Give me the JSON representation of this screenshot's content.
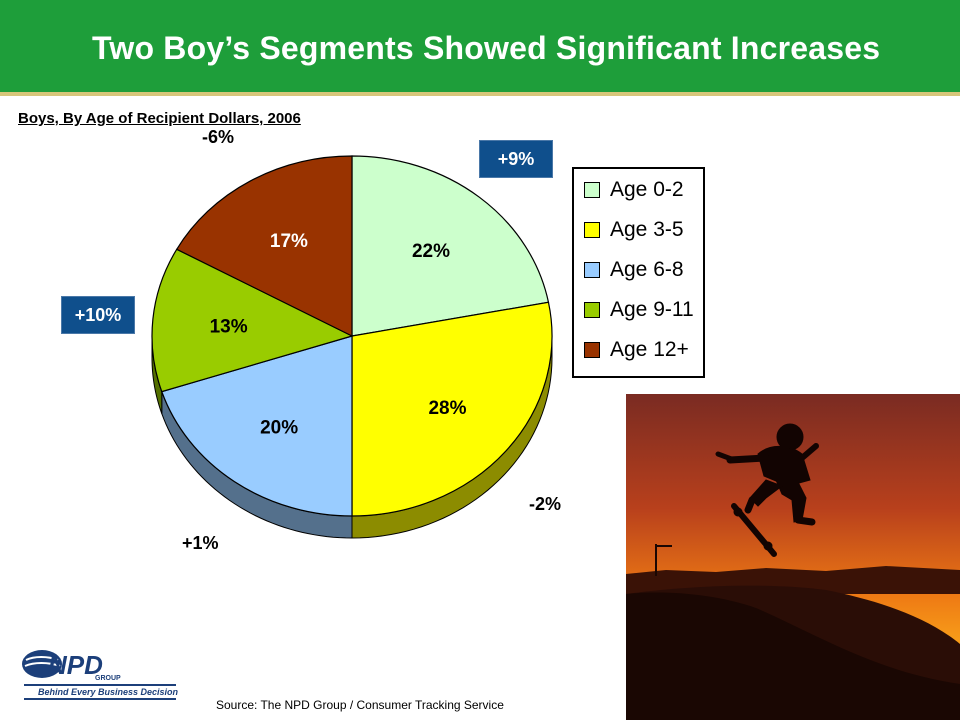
{
  "slide": {
    "title": "Two Boy’s Segments Showed Significant Increases",
    "subtitle": "Boys, By Age of Recipient Dollars, 2006",
    "source": "Source:  The NPD Group / Consumer Tracking Service",
    "logo_text": "NPD",
    "logo_group": "GROUP",
    "logo_tagline": "Behind Every Business Decision"
  },
  "colors": {
    "header": "#1e9e3a",
    "callout": "#0f4f8c"
  },
  "chart_data": {
    "type": "pie",
    "title": "Boys, By Age of Recipient Dollars, 2006",
    "legend_position": "right",
    "three_d": true,
    "categories": [
      "Age 0-2",
      "Age 3-5",
      "Age 6-8",
      "Age 9-11",
      "Age 12+"
    ],
    "values": [
      22,
      28,
      20,
      13,
      17
    ],
    "value_labels": [
      "22%",
      "28%",
      "20%",
      "13%",
      "17%"
    ],
    "colors": [
      "#ccffcc",
      "#ffff00",
      "#99ccff",
      "#99cc00",
      "#993300"
    ],
    "changes": [
      "+9%",
      "-2%",
      "+1%",
      "+10%",
      "-6%"
    ],
    "highlighted": [
      "Age 0-2",
      "Age 9-11"
    ]
  }
}
